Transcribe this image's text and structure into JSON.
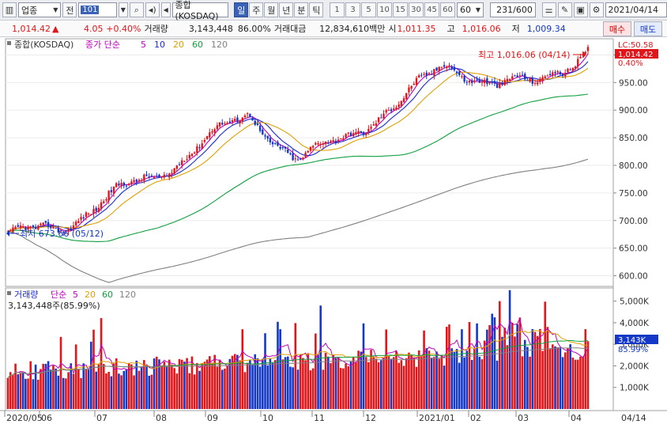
{
  "toolbar": {
    "market_combo": "업종",
    "period_label": "전",
    "code_value": "101",
    "index_name": "종합(KOSDAQ)",
    "period_tabs": [
      "일",
      "주",
      "월",
      "년",
      "분",
      "틱"
    ],
    "selected_period": "일",
    "interval_buttons": [
      "1",
      "3",
      "5",
      "10",
      "15",
      "30",
      "45",
      "60"
    ],
    "interval_combo": "60",
    "bar_count": "231",
    "bar_total": "/600",
    "date_value": "2021/04/14"
  },
  "quote": {
    "price": "1,014.42",
    "change": "4.05",
    "change_pct": "+0.40%",
    "volume_label": "거래량",
    "volume": "3,143,448",
    "volume_ratio": "86.00%",
    "amount_label": "거래대금",
    "amount": "12,834,610백만",
    "open_label": "시",
    "open": "1,011.35",
    "high_label": "고",
    "high": "1,016.06",
    "low_label": "저",
    "low": "1,009.34",
    "buy_label": "매수",
    "sell_label": "매도"
  },
  "price_panel": {
    "title": "종합(KOSDAQ)",
    "ma_label": "종가 단순",
    "ma_periods": [
      "5",
      "10",
      "20",
      "60",
      "120"
    ],
    "ma_colors": [
      "#c000c0",
      "#1a2ad0",
      "#e0a000",
      "#10a040",
      "#808080"
    ],
    "high_annotation": "최고 1,016.06 (04/14)",
    "low_annotation": "최저 673.66 (05/12)",
    "lc_label": "LC:50.58",
    "last_price_badge": "1,014.42",
    "last_pct_badge": "0.40%",
    "y_ticks": [
      "1,000.00",
      "950.00",
      "900.00",
      "850.00",
      "800.00",
      "750.00",
      "700.00",
      "650.00",
      "600.00"
    ]
  },
  "volume_panel": {
    "title": "거래량",
    "ma_label": "단순",
    "ma_periods": [
      "5",
      "20",
      "60",
      "120"
    ],
    "ma_colors": [
      "#c000c0",
      "#e0a000",
      "#10a040",
      "#808080"
    ],
    "current_volume": "3,143,448주(85.99%)",
    "last_badge": "3,143K",
    "last_pct": "85.99%",
    "y_ticks": [
      "5,000K",
      "4,000K",
      "3,000K",
      "2,000K",
      "1,000K"
    ]
  },
  "x_axis": {
    "labels": [
      "2020/05",
      "06",
      "07",
      "08",
      "09",
      "10",
      "11",
      "12",
      "2021/01",
      "02",
      "03",
      "04"
    ],
    "right_date": "04/14"
  },
  "chart_data": {
    "type": "candlestick",
    "instrument": "종합(KOSDAQ)",
    "period": "daily",
    "date_range": [
      "2020/05/12",
      "2021/04/14"
    ],
    "ylim": [
      585,
      1025
    ],
    "price_anchors": [
      {
        "month": "2020/05",
        "close": 680
      },
      {
        "month": "2020/06",
        "close": 745
      },
      {
        "month": "2020/07",
        "close": 770
      },
      {
        "month": "2020/08",
        "close": 850
      },
      {
        "month": "2020/09",
        "close": 880
      },
      {
        "month": "2020/10",
        "close": 820
      },
      {
        "month": "2020/11",
        "close": 840
      },
      {
        "month": "2020/12",
        "close": 920
      },
      {
        "month": "2021/01",
        "close": 970
      },
      {
        "month": "2021/02",
        "close": 960
      },
      {
        "month": "2021/03",
        "close": 940
      },
      {
        "month": "2021/04",
        "close": 1014.42
      }
    ],
    "high": {
      "value": 1016.06,
      "date": "04/14"
    },
    "low": {
      "value": 673.66,
      "date": "05/12"
    },
    "volume_ylim": [
      0,
      5500
    ],
    "volume_unit": "K",
    "last_volume": 3143
  }
}
